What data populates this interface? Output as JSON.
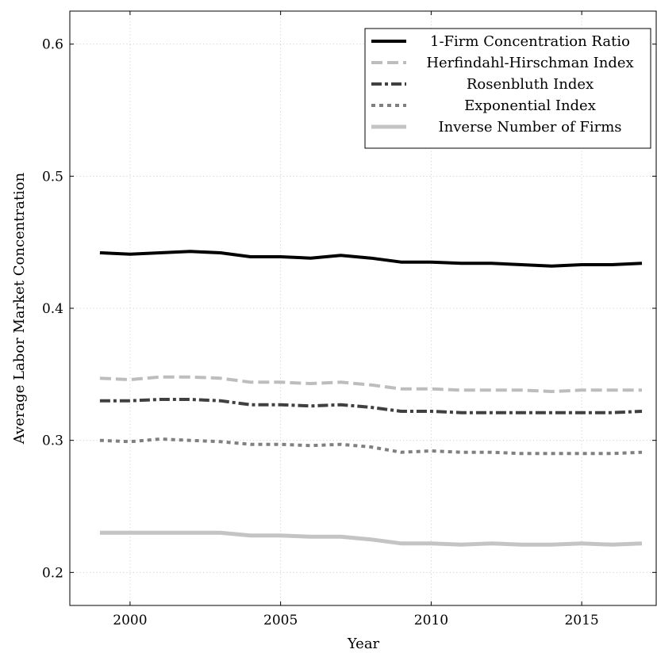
{
  "chart_data": {
    "type": "line",
    "title": "",
    "xlabel": "Year",
    "ylabel": "Average Labor Market Concentration",
    "xlim": [
      1998,
      2017.5
    ],
    "ylim": [
      0.175,
      0.625
    ],
    "xticks": [
      2000,
      2005,
      2010,
      2015
    ],
    "yticks": [
      0.2,
      0.3,
      0.4,
      0.5,
      0.6
    ],
    "xtick_labels": [
      "2000",
      "2005",
      "2010",
      "2015"
    ],
    "ytick_labels": [
      "0.2",
      "0.3",
      "0.4",
      "0.5",
      "0.6"
    ],
    "grid": true,
    "legend_position": "top-right",
    "x": [
      1999,
      2000,
      2001,
      2002,
      2003,
      2004,
      2005,
      2006,
      2007,
      2008,
      2009,
      2010,
      2011,
      2012,
      2013,
      2014,
      2015,
      2016,
      2017
    ],
    "series": [
      {
        "name": "1-Firm Concentration Ratio",
        "color": "#000000",
        "dash": "solid",
        "values": [
          0.442,
          0.441,
          0.442,
          0.443,
          0.442,
          0.439,
          0.439,
          0.438,
          0.44,
          0.438,
          0.435,
          0.435,
          0.434,
          0.434,
          0.433,
          0.432,
          0.433,
          0.433,
          0.434
        ]
      },
      {
        "name": "Herfindahl-Hirschman Index",
        "color": "#bdbdbd",
        "dash": "dashed",
        "values": [
          0.347,
          0.346,
          0.348,
          0.348,
          0.347,
          0.344,
          0.344,
          0.343,
          0.344,
          0.342,
          0.339,
          0.339,
          0.338,
          0.338,
          0.338,
          0.337,
          0.338,
          0.338,
          0.338
        ]
      },
      {
        "name": "Rosenbluth Index",
        "color": "#404040",
        "dash": "dashdot",
        "values": [
          0.33,
          0.33,
          0.331,
          0.331,
          0.33,
          0.327,
          0.327,
          0.326,
          0.327,
          0.325,
          0.322,
          0.322,
          0.321,
          0.321,
          0.321,
          0.321,
          0.321,
          0.321,
          0.322
        ]
      },
      {
        "name": "Exponential Index",
        "color": "#808080",
        "dash": "dotted",
        "values": [
          0.3,
          0.299,
          0.301,
          0.3,
          0.299,
          0.297,
          0.297,
          0.296,
          0.297,
          0.295,
          0.291,
          0.292,
          0.291,
          0.291,
          0.29,
          0.29,
          0.29,
          0.29,
          0.291
        ]
      },
      {
        "name": "Inverse Number of Firms",
        "color": "#c4c4c4",
        "dash": "solid",
        "values": [
          0.23,
          0.23,
          0.23,
          0.23,
          0.23,
          0.228,
          0.228,
          0.227,
          0.227,
          0.225,
          0.222,
          0.222,
          0.221,
          0.222,
          0.221,
          0.221,
          0.222,
          0.221,
          0.222
        ]
      }
    ]
  }
}
